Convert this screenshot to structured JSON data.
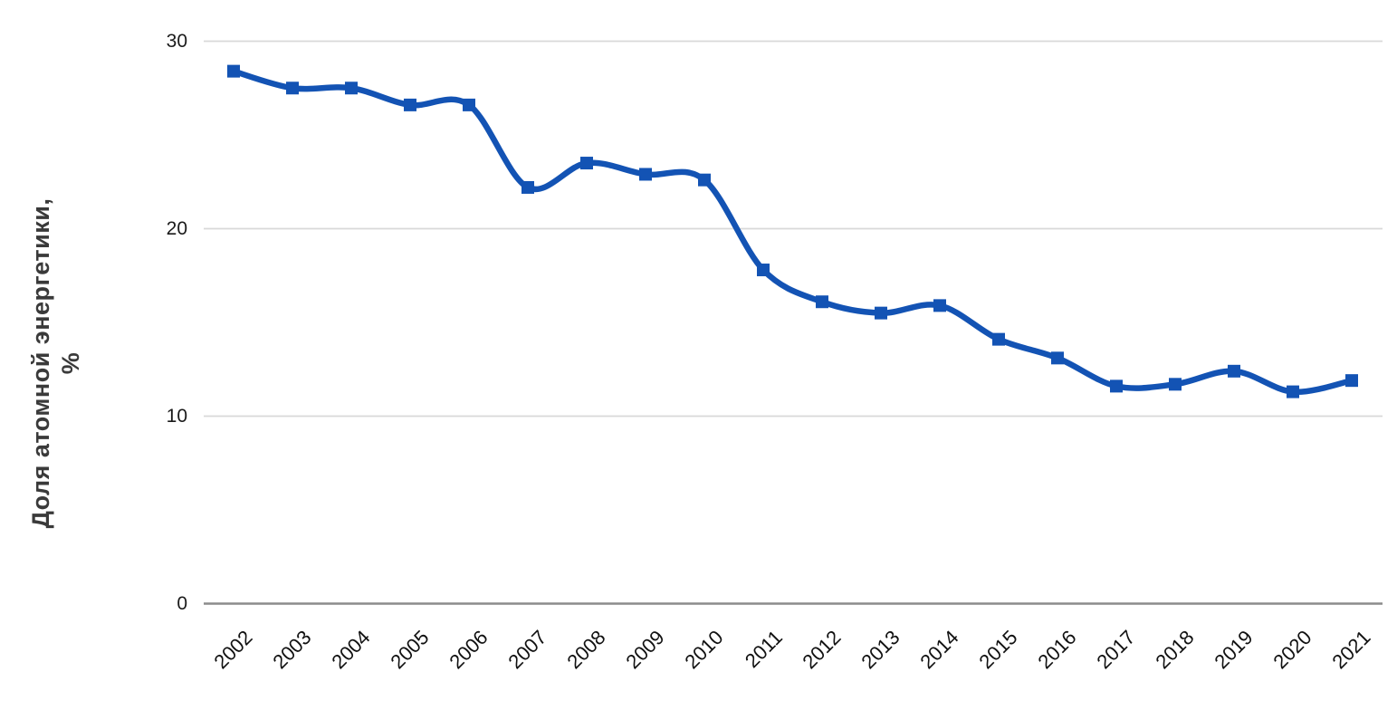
{
  "chart_data": {
    "type": "line",
    "title": "",
    "x": [
      "2002",
      "2003",
      "2004",
      "2005",
      "2006",
      "2007",
      "2008",
      "2009",
      "2010",
      "2011",
      "2012",
      "2013",
      "2014",
      "2015",
      "2016",
      "2017",
      "2018",
      "2019",
      "2020",
      "2021"
    ],
    "series": [
      {
        "name": "Доля атомной энергетики, %",
        "values": [
          28.4,
          27.5,
          27.5,
          26.6,
          26.6,
          22.2,
          23.5,
          22.9,
          22.6,
          17.8,
          16.1,
          15.5,
          15.9,
          14.1,
          13.1,
          11.6,
          11.7,
          12.4,
          11.3,
          11.9
        ]
      }
    ],
    "xlabel": "",
    "ylabel": "Доля атомной энергетики, %",
    "ylabel_lines": [
      "Доля атомной энергетики,",
      "%"
    ],
    "y_ticks": [
      0,
      10,
      20,
      30
    ],
    "ylim": [
      0,
      30
    ],
    "grid": true,
    "legend": false,
    "marker": "square",
    "line_smooth": true,
    "colors": {
      "line": "#1353b4",
      "gridline": "#d9d9d9",
      "axis_line": "#8c8c8c",
      "tick_label": "#1a1a1a",
      "axis_title": "#3a3a3a",
      "background": "#ffffff"
    }
  }
}
